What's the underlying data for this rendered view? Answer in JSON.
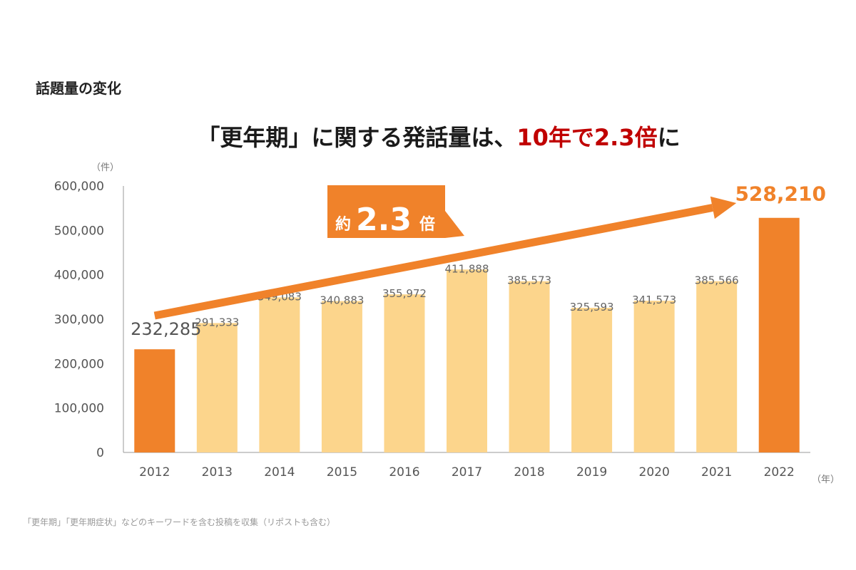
{
  "section_title": "話題量の変化",
  "headline": {
    "prefix": "「更年期」に関する発話量は、",
    "highlight": "10年で2.3倍",
    "suffix": "に"
  },
  "badge": {
    "prefix": "約",
    "value": "2.3",
    "suffix": "倍"
  },
  "footnote": "「更年期」「更年期症状」などのキーワードを含む投稿を収集（リポストも含む）",
  "colors": {
    "highlight_bar": "#f0822a",
    "normal_bar": "#fcd58c",
    "accent_text": "#c00000"
  },
  "chart_data": {
    "type": "bar",
    "x": [
      "2012",
      "2013",
      "2014",
      "2015",
      "2016",
      "2017",
      "2018",
      "2019",
      "2020",
      "2021",
      "2022"
    ],
    "values": [
      232285,
      291333,
      349083,
      340883,
      355972,
      411888,
      385573,
      325593,
      341573,
      385566,
      528210
    ],
    "value_labels": [
      "232,285",
      "291,333",
      "349,083",
      "340,883",
      "355,972",
      "411,888",
      "385,573",
      "325,593",
      "341,573",
      "385,566",
      "528,210"
    ],
    "highlighted": [
      "2012",
      "2022"
    ],
    "ylim": [
      0,
      600000
    ],
    "yticks": [
      0,
      100000,
      200000,
      300000,
      400000,
      500000,
      600000
    ],
    "ytick_labels": [
      "0",
      "100,000",
      "200,000",
      "300,000",
      "400,000",
      "500,000",
      "600,000"
    ],
    "ylabel": "（件）",
    "xlabel": "（年）",
    "grid": false,
    "legend": "none"
  }
}
